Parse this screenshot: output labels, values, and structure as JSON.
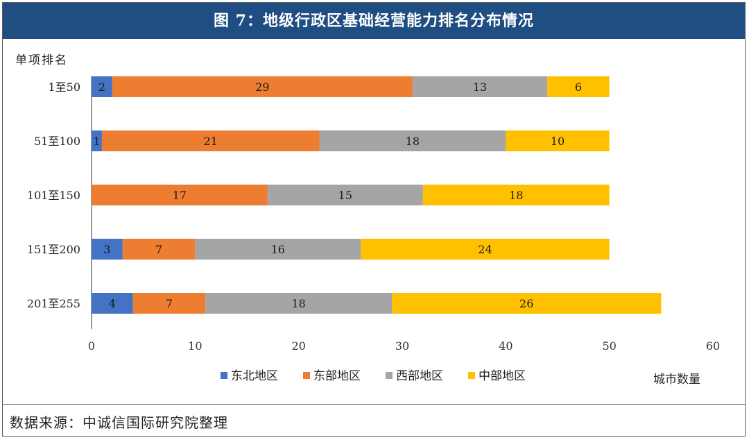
{
  "source_note": "数据来源：中诚信国际研究院整理",
  "chart_data": {
    "type": "bar",
    "orientation": "horizontal",
    "stacked": true,
    "title": "图 7：地级行政区基础经营能力排名分布情况",
    "ylabel": "单项排名",
    "xlabel": "城市数量",
    "xlim": [
      0,
      60
    ],
    "xticks": [
      0,
      10,
      20,
      30,
      40,
      50,
      60
    ],
    "grid": false,
    "legend_position": "bottom",
    "categories": [
      "1至50",
      "51至100",
      "101至150",
      "151至200",
      "201至255"
    ],
    "series": [
      {
        "name": "东北地区",
        "color": "#4472c4",
        "values": [
          2,
          1,
          0,
          3,
          4
        ]
      },
      {
        "name": "东部地区",
        "color": "#ed7d31",
        "values": [
          29,
          21,
          17,
          7,
          7
        ]
      },
      {
        "name": "西部地区",
        "color": "#a5a5a5",
        "values": [
          13,
          18,
          15,
          16,
          18
        ]
      },
      {
        "name": "中部地区",
        "color": "#ffc000",
        "values": [
          6,
          10,
          18,
          24,
          26
        ]
      }
    ]
  }
}
